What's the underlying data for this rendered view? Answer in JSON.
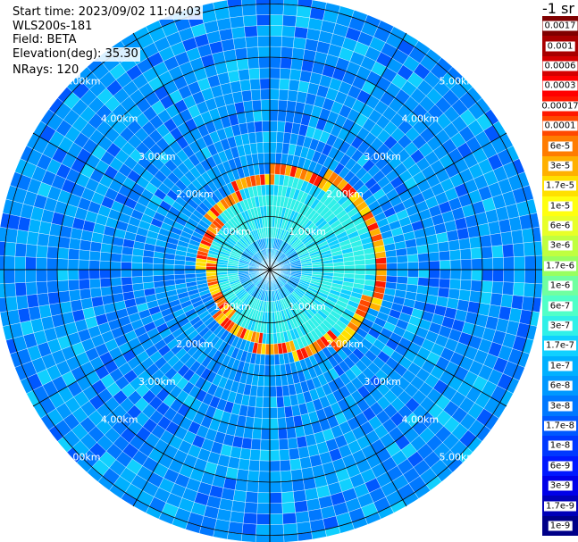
{
  "header": {
    "start_time": "Start time: 2023/09/02 11:04:03",
    "instrument": "WLS200s-181",
    "field": "Field: BETA",
    "elevation": "Elevation(deg): 35.30",
    "nrays": "NRays: 120"
  },
  "chart_data": {
    "type": "polar-ppi",
    "field": "BETA",
    "units_label": "-1 sr",
    "n_rays": 120,
    "elevation_deg": 35.3,
    "range_rings_km": [
      1,
      2,
      3,
      4,
      5
    ],
    "ring_labels": [
      "1.00km",
      "2.00km",
      "3.00km",
      "4.00km",
      "5.00km"
    ],
    "spoke_count": 12,
    "colorbar_levels": [
      "0.0017",
      "0.001",
      "0.0006",
      "0.0003",
      "0.00017",
      "0.0001",
      "6e-5",
      "3e-5",
      "1.7e-5",
      "1e-5",
      "6e-6",
      "3e-6",
      "1.7e-6",
      "1e-6",
      "6e-7",
      "3e-7",
      "1.7e-7",
      "1e-7",
      "6e-8",
      "3e-8",
      "1.7e-8",
      "1e-8",
      "6e-9",
      "3e-9",
      "1.7e-9",
      "1e-9"
    ],
    "colorbar_colors": [
      "#800000",
      "#a80000",
      "#d40000",
      "#ff0000",
      "#ff1800",
      "#ff4800",
      "#ff7c00",
      "#ffb000",
      "#ffe000",
      "#ffff10",
      "#e8ff28",
      "#c0ff40",
      "#98ff60",
      "#70ffa0",
      "#50ffc8",
      "#30f0e8",
      "#10d0ff",
      "#00b0ff",
      "#0098ff",
      "#0078ff",
      "#0058ff",
      "#0038ff",
      "#0018ff",
      "#0000e8",
      "#0000b8",
      "#000088"
    ]
  }
}
